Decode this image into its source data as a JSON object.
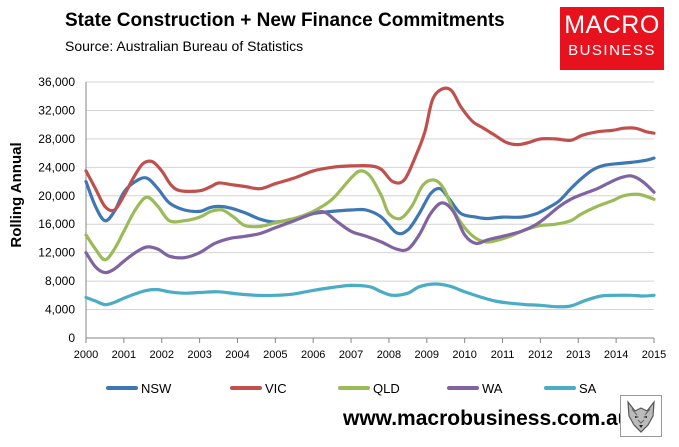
{
  "header": {
    "title": "State Construction + New Finance Commitments",
    "subtitle": "Source: Australian Bureau of Statistics"
  },
  "logo": {
    "line1": "MACRO",
    "line2": "BUSINESS",
    "color": "#e8121f"
  },
  "footer": {
    "website": "www.macrobusiness.com.au",
    "mascot_icon": "wolf-icon"
  },
  "chart_data": {
    "type": "line",
    "title": "State Construction + New Finance Commitments",
    "xlabel": "",
    "ylabel": "Rolling Annual",
    "xlim": [
      2000,
      2015
    ],
    "ylim": [
      0,
      36000
    ],
    "x_ticks": [
      2000,
      2001,
      2002,
      2003,
      2004,
      2005,
      2006,
      2007,
      2008,
      2009,
      2010,
      2011,
      2012,
      2013,
      2014,
      2015
    ],
    "y_ticks": [
      0,
      4000,
      8000,
      12000,
      16000,
      20000,
      24000,
      28000,
      32000,
      36000
    ],
    "y_tick_labels": [
      "0",
      "4,000",
      "8,000",
      "12,000",
      "16,000",
      "20,000",
      "24,000",
      "28,000",
      "32,000",
      "36,000"
    ],
    "grid": true,
    "legend": "bottom",
    "series": [
      {
        "name": "NSW",
        "color": "#3f77b5",
        "points": [
          [
            2000,
            22000
          ],
          [
            2000.25,
            18500
          ],
          [
            2000.5,
            16500
          ],
          [
            2000.75,
            17800
          ],
          [
            2001.0,
            20500
          ],
          [
            2001.3,
            22000
          ],
          [
            2001.6,
            22500
          ],
          [
            2001.9,
            21000
          ],
          [
            2002.2,
            19000
          ],
          [
            2002.6,
            18000
          ],
          [
            2003.0,
            17800
          ],
          [
            2003.25,
            18300
          ],
          [
            2003.5,
            18500
          ],
          [
            2003.8,
            18300
          ],
          [
            2004.2,
            17600
          ],
          [
            2004.6,
            16700
          ],
          [
            2005.0,
            16300
          ],
          [
            2005.5,
            16800
          ],
          [
            2006.0,
            17500
          ],
          [
            2006.5,
            17800
          ],
          [
            2007.0,
            18000
          ],
          [
            2007.4,
            18000
          ],
          [
            2007.8,
            17000
          ],
          [
            2008.2,
            14800
          ],
          [
            2008.5,
            15200
          ],
          [
            2008.8,
            17500
          ],
          [
            2009.1,
            20300
          ],
          [
            2009.35,
            21000
          ],
          [
            2009.6,
            19500
          ],
          [
            2009.9,
            17500
          ],
          [
            2010.3,
            17000
          ],
          [
            2010.6,
            16800
          ],
          [
            2011.0,
            17000
          ],
          [
            2011.5,
            17000
          ],
          [
            2011.9,
            17500
          ],
          [
            2012.2,
            18300
          ],
          [
            2012.5,
            19300
          ],
          [
            2012.8,
            21000
          ],
          [
            2013.1,
            22500
          ],
          [
            2013.4,
            23700
          ],
          [
            2013.7,
            24300
          ],
          [
            2014.0,
            24500
          ],
          [
            2014.4,
            24700
          ],
          [
            2014.8,
            25000
          ],
          [
            2015.0,
            25300
          ]
        ]
      },
      {
        "name": "VIC",
        "color": "#c0504d",
        "points": [
          [
            2000,
            23500
          ],
          [
            2000.25,
            21000
          ],
          [
            2000.5,
            18500
          ],
          [
            2000.75,
            18000
          ],
          [
            2001.0,
            20000
          ],
          [
            2001.25,
            22500
          ],
          [
            2001.5,
            24500
          ],
          [
            2001.75,
            24800
          ],
          [
            2002.0,
            23500
          ],
          [
            2002.25,
            21500
          ],
          [
            2002.5,
            20700
          ],
          [
            2003.0,
            20700
          ],
          [
            2003.3,
            21300
          ],
          [
            2003.5,
            21800
          ],
          [
            2003.8,
            21600
          ],
          [
            2004.2,
            21300
          ],
          [
            2004.6,
            21000
          ],
          [
            2005.0,
            21700
          ],
          [
            2005.5,
            22500
          ],
          [
            2006.0,
            23500
          ],
          [
            2006.5,
            24000
          ],
          [
            2007.0,
            24200
          ],
          [
            2007.5,
            24200
          ],
          [
            2007.8,
            23700
          ],
          [
            2008.1,
            22000
          ],
          [
            2008.4,
            22200
          ],
          [
            2008.7,
            25500
          ],
          [
            2008.95,
            29000
          ],
          [
            2009.15,
            33500
          ],
          [
            2009.4,
            35000
          ],
          [
            2009.65,
            34800
          ],
          [
            2009.9,
            32500
          ],
          [
            2010.2,
            30500
          ],
          [
            2010.5,
            29500
          ],
          [
            2010.8,
            28500
          ],
          [
            2011.1,
            27500
          ],
          [
            2011.4,
            27200
          ],
          [
            2011.7,
            27500
          ],
          [
            2012.0,
            28000
          ],
          [
            2012.4,
            28000
          ],
          [
            2012.8,
            27800
          ],
          [
            2013.1,
            28500
          ],
          [
            2013.5,
            29000
          ],
          [
            2013.9,
            29200
          ],
          [
            2014.2,
            29500
          ],
          [
            2014.5,
            29500
          ],
          [
            2014.8,
            29000
          ],
          [
            2015.0,
            28800
          ]
        ]
      },
      {
        "name": "QLD",
        "color": "#9bbb59",
        "points": [
          [
            2000,
            14500
          ],
          [
            2000.25,
            12500
          ],
          [
            2000.5,
            11000
          ],
          [
            2000.75,
            12500
          ],
          [
            2001.0,
            15000
          ],
          [
            2001.3,
            18000
          ],
          [
            2001.6,
            19800
          ],
          [
            2001.9,
            18500
          ],
          [
            2002.2,
            16500
          ],
          [
            2002.6,
            16500
          ],
          [
            2003.0,
            17000
          ],
          [
            2003.3,
            17800
          ],
          [
            2003.6,
            18000
          ],
          [
            2003.9,
            17000
          ],
          [
            2004.2,
            15800
          ],
          [
            2004.6,
            15700
          ],
          [
            2005.0,
            16200
          ],
          [
            2005.5,
            16800
          ],
          [
            2006.0,
            17800
          ],
          [
            2006.5,
            19500
          ],
          [
            2007.0,
            22500
          ],
          [
            2007.25,
            23500
          ],
          [
            2007.5,
            22800
          ],
          [
            2007.8,
            20000
          ],
          [
            2008.0,
            17500
          ],
          [
            2008.3,
            16800
          ],
          [
            2008.6,
            18500
          ],
          [
            2008.9,
            21500
          ],
          [
            2009.2,
            22200
          ],
          [
            2009.45,
            21000
          ],
          [
            2009.7,
            18000
          ],
          [
            2010.0,
            15500
          ],
          [
            2010.3,
            14000
          ],
          [
            2010.6,
            13500
          ],
          [
            2010.9,
            13800
          ],
          [
            2011.2,
            14300
          ],
          [
            2011.6,
            15200
          ],
          [
            2012.0,
            15800
          ],
          [
            2012.4,
            16000
          ],
          [
            2012.8,
            16500
          ],
          [
            2013.1,
            17500
          ],
          [
            2013.5,
            18500
          ],
          [
            2013.9,
            19300
          ],
          [
            2014.2,
            20000
          ],
          [
            2014.6,
            20200
          ],
          [
            2015.0,
            19500
          ]
        ]
      },
      {
        "name": "WA",
        "color": "#8064a2",
        "points": [
          [
            2000,
            12000
          ],
          [
            2000.25,
            10000
          ],
          [
            2000.5,
            9200
          ],
          [
            2000.75,
            9700
          ],
          [
            2001.0,
            10800
          ],
          [
            2001.3,
            12000
          ],
          [
            2001.6,
            12800
          ],
          [
            2001.9,
            12500
          ],
          [
            2002.2,
            11500
          ],
          [
            2002.6,
            11300
          ],
          [
            2003.0,
            12000
          ],
          [
            2003.4,
            13300
          ],
          [
            2003.8,
            14000
          ],
          [
            2004.2,
            14300
          ],
          [
            2004.6,
            14700
          ],
          [
            2005.0,
            15500
          ],
          [
            2005.5,
            16500
          ],
          [
            2006.0,
            17500
          ],
          [
            2006.3,
            17700
          ],
          [
            2006.6,
            16500
          ],
          [
            2007.0,
            15000
          ],
          [
            2007.4,
            14300
          ],
          [
            2007.8,
            13500
          ],
          [
            2008.2,
            12500
          ],
          [
            2008.5,
            12500
          ],
          [
            2008.8,
            14500
          ],
          [
            2009.1,
            17500
          ],
          [
            2009.4,
            19000
          ],
          [
            2009.7,
            17800
          ],
          [
            2010.0,
            14500
          ],
          [
            2010.3,
            13300
          ],
          [
            2010.6,
            13800
          ],
          [
            2011.0,
            14300
          ],
          [
            2011.5,
            15000
          ],
          [
            2011.9,
            16000
          ],
          [
            2012.2,
            17200
          ],
          [
            2012.5,
            18500
          ],
          [
            2012.8,
            19500
          ],
          [
            2013.1,
            20200
          ],
          [
            2013.5,
            21000
          ],
          [
            2013.8,
            21800
          ],
          [
            2014.1,
            22500
          ],
          [
            2014.4,
            22800
          ],
          [
            2014.7,
            22000
          ],
          [
            2015.0,
            20500
          ]
        ]
      },
      {
        "name": "SA",
        "color": "#4bacc6",
        "points": [
          [
            2000,
            5700
          ],
          [
            2000.25,
            5200
          ],
          [
            2000.5,
            4700
          ],
          [
            2000.75,
            5000
          ],
          [
            2001.0,
            5600
          ],
          [
            2001.3,
            6200
          ],
          [
            2001.6,
            6700
          ],
          [
            2001.9,
            6800
          ],
          [
            2002.2,
            6500
          ],
          [
            2002.6,
            6300
          ],
          [
            2003.0,
            6400
          ],
          [
            2003.5,
            6500
          ],
          [
            2004.0,
            6200
          ],
          [
            2004.5,
            6000
          ],
          [
            2005.0,
            6000
          ],
          [
            2005.5,
            6200
          ],
          [
            2006.0,
            6700
          ],
          [
            2006.5,
            7100
          ],
          [
            2007.0,
            7400
          ],
          [
            2007.5,
            7200
          ],
          [
            2007.8,
            6500
          ],
          [
            2008.1,
            6000
          ],
          [
            2008.5,
            6300
          ],
          [
            2008.8,
            7200
          ],
          [
            2009.2,
            7600
          ],
          [
            2009.6,
            7300
          ],
          [
            2010.0,
            6500
          ],
          [
            2010.4,
            5800
          ],
          [
            2010.8,
            5200
          ],
          [
            2011.2,
            4900
          ],
          [
            2011.6,
            4700
          ],
          [
            2012.0,
            4600
          ],
          [
            2012.4,
            4400
          ],
          [
            2012.8,
            4500
          ],
          [
            2013.2,
            5300
          ],
          [
            2013.6,
            5900
          ],
          [
            2014.0,
            6000
          ],
          [
            2014.4,
            6000
          ],
          [
            2014.7,
            5900
          ],
          [
            2015.0,
            6000
          ]
        ]
      }
    ]
  }
}
